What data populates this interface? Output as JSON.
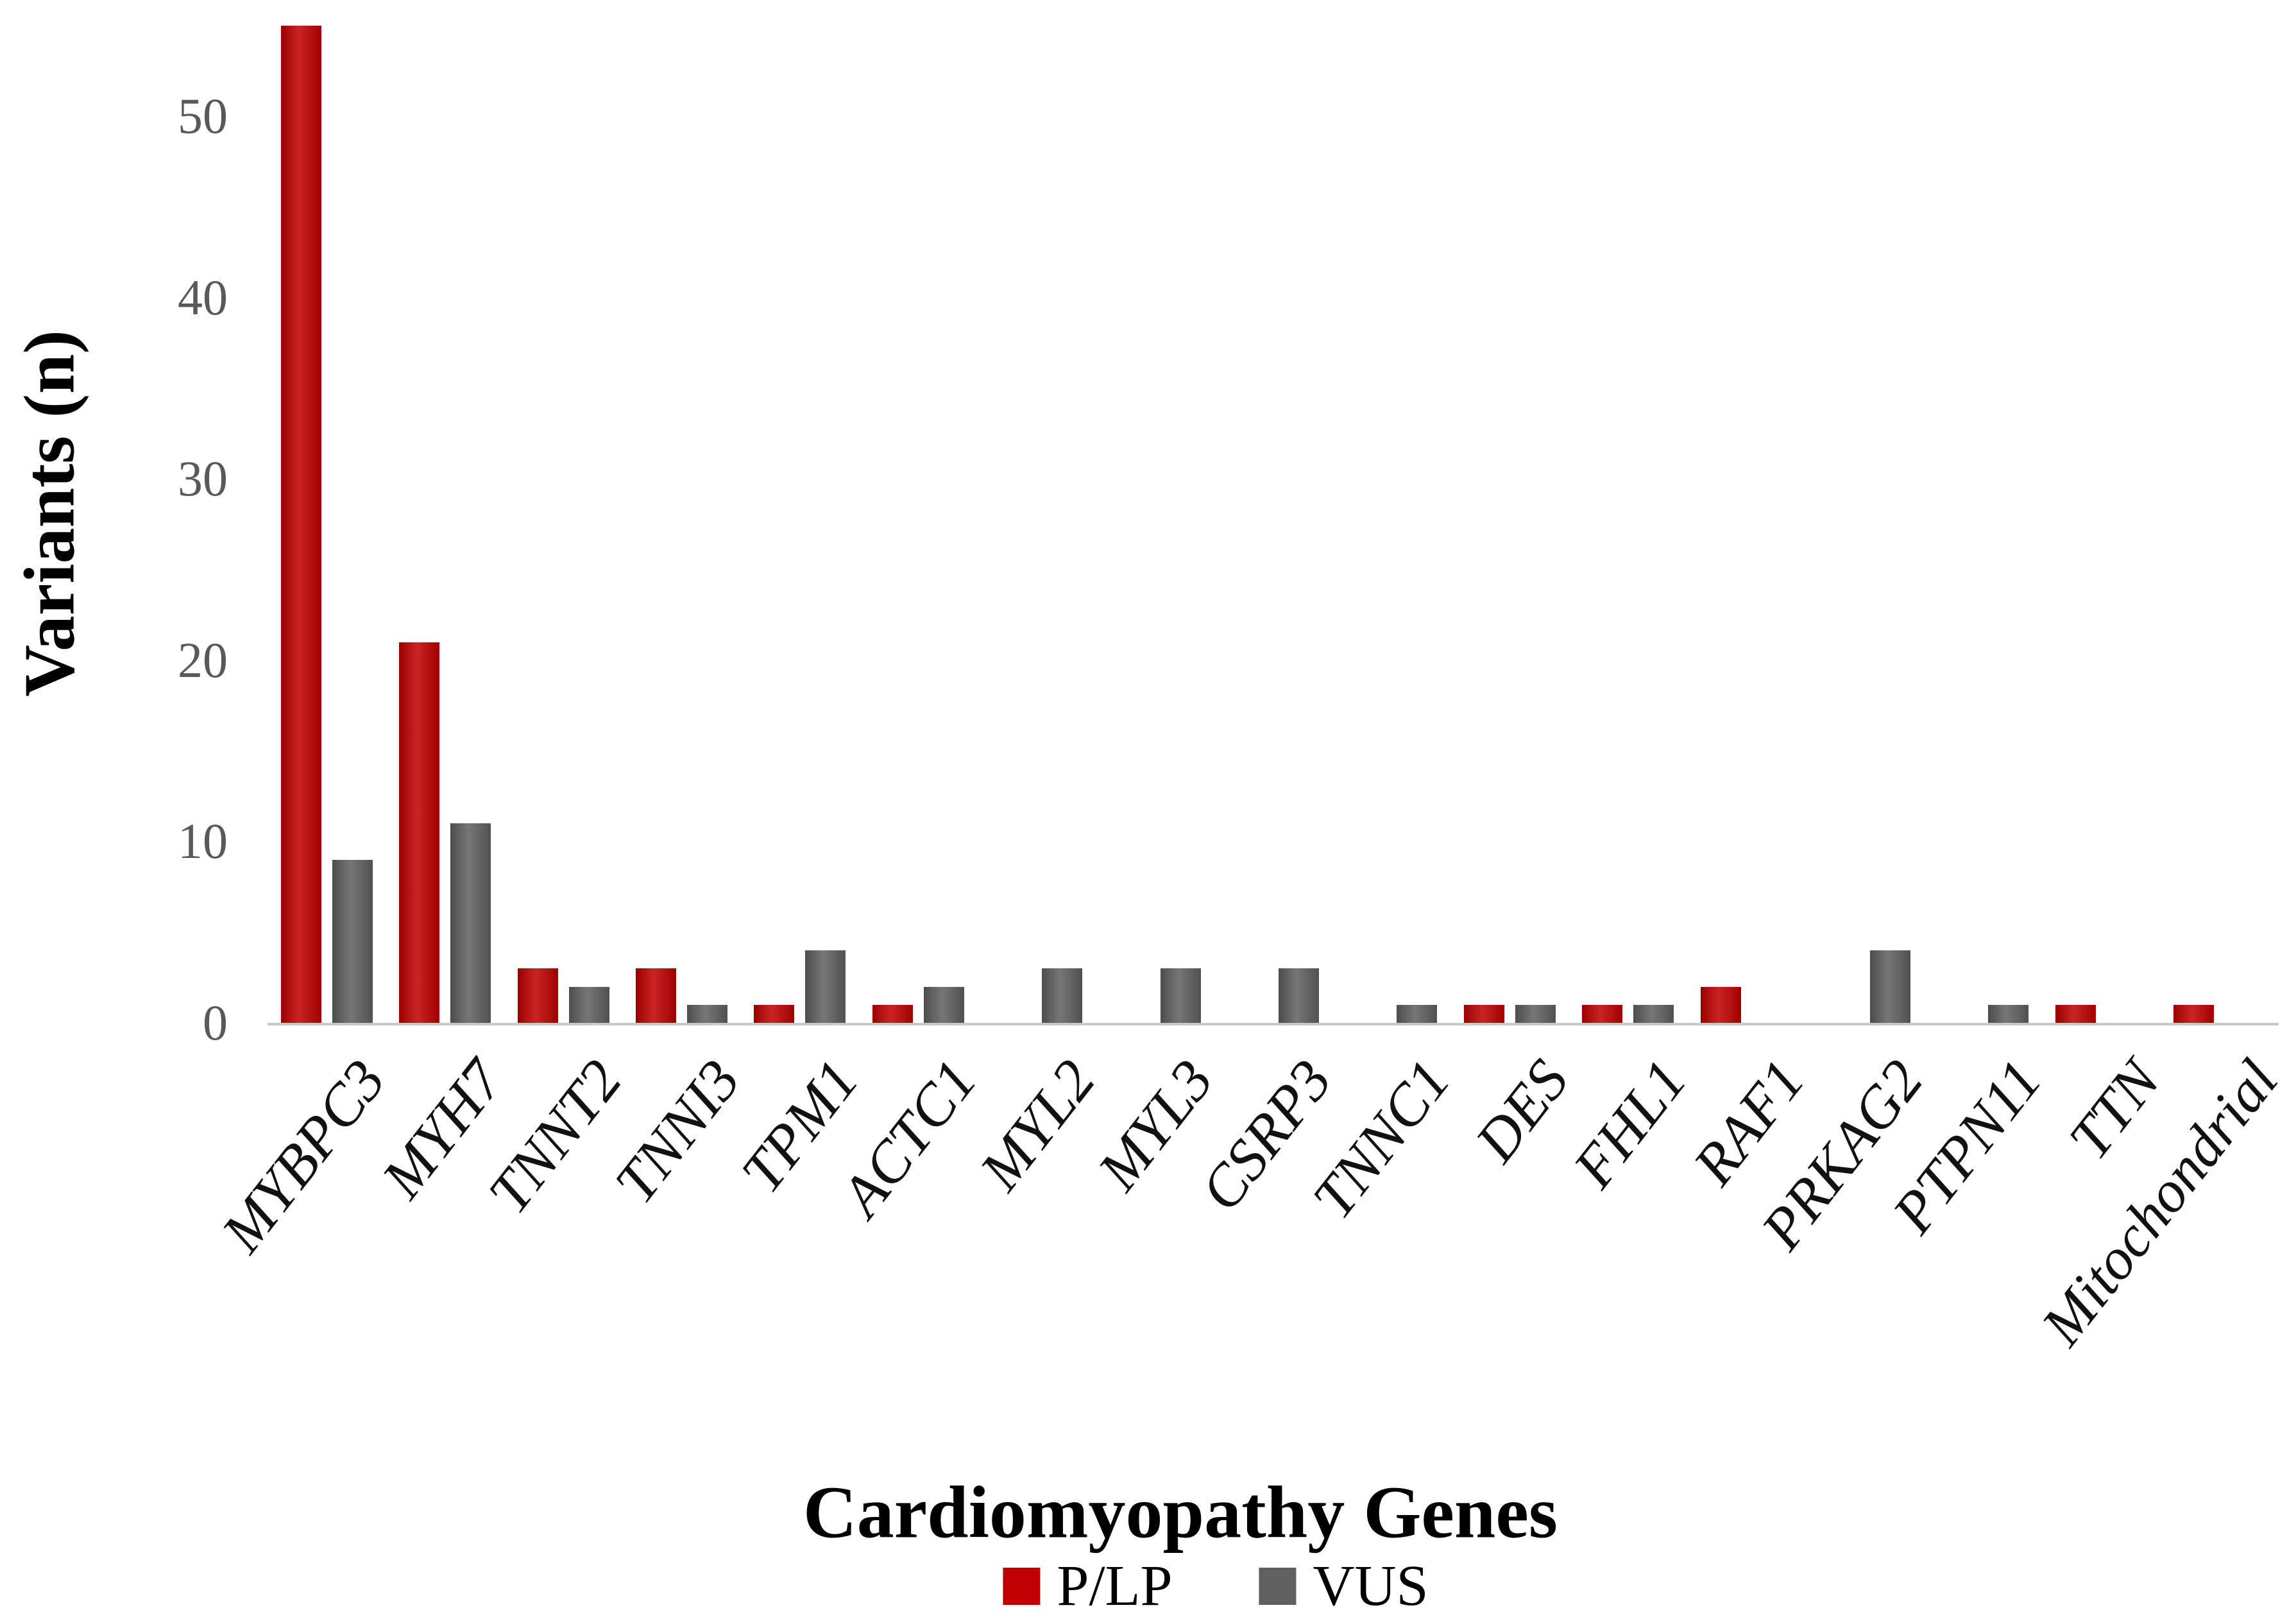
{
  "chart_data": {
    "type": "bar",
    "title": "",
    "xlabel": "Cardiomyopathy Genes",
    "ylabel": "Variants (n)",
    "categories": [
      "MYBPC3",
      "MYH7",
      "TNNT2",
      "TNNI3",
      "TPM1",
      "ACTC1",
      "MYL2",
      "MYL3",
      "CSRP3",
      "TNNC1",
      "DES",
      "FHL1",
      "RAF1",
      "PRKAG2",
      "PTPN11",
      "TTN",
      "Mitochondrial"
    ],
    "series": [
      {
        "name": "P/LP",
        "color": "#C00000",
        "values": [
          55,
          21,
          3,
          3,
          1,
          1,
          0,
          0,
          0,
          0,
          1,
          1,
          2,
          0,
          0,
          1,
          1
        ]
      },
      {
        "name": "VUS",
        "color": "#606060",
        "values": [
          9,
          11,
          2,
          1,
          4,
          2,
          3,
          3,
          3,
          1,
          1,
          1,
          0,
          4,
          1,
          0,
          0
        ]
      }
    ],
    "ylim": [
      0,
      55
    ],
    "yticks": [
      0,
      10,
      20,
      30,
      40,
      50
    ],
    "grid": false,
    "legend_position": "bottom"
  },
  "colors": {
    "plp_bar": "#C00000",
    "vus_bar": "#606060",
    "tick_label": "#595959",
    "axis_line": "#C9C9C9",
    "text": "#000000"
  }
}
